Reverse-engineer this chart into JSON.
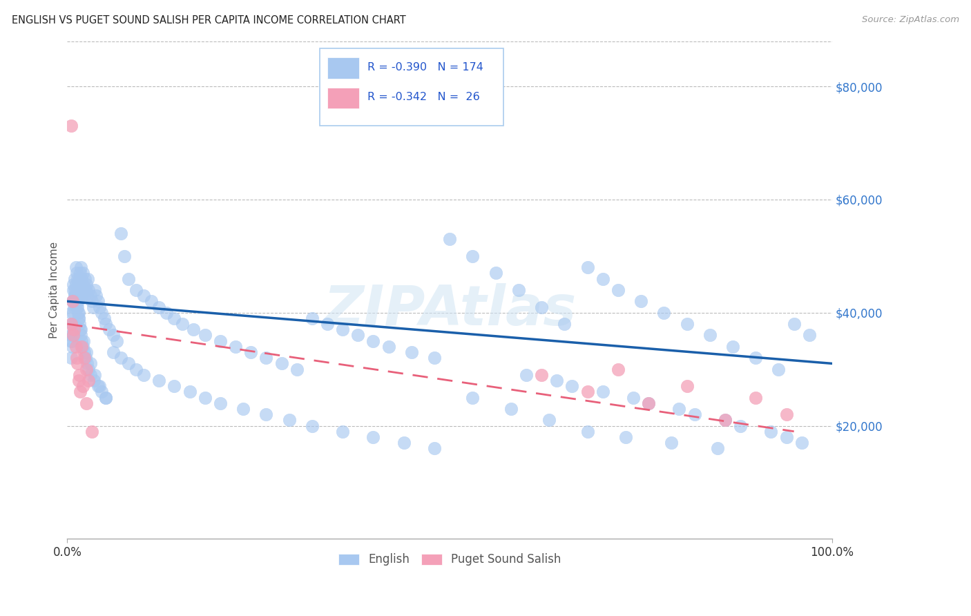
{
  "title": "ENGLISH VS PUGET SOUND SALISH PER CAPITA INCOME CORRELATION CHART",
  "source": "Source: ZipAtlas.com",
  "ylabel": "Per Capita Income",
  "watermark": "ZIPAtlas",
  "x_min": 0.0,
  "x_max": 1.0,
  "y_min": 0,
  "y_max": 88000,
  "y_ticks": [
    20000,
    40000,
    60000,
    80000
  ],
  "y_tick_labels": [
    "$20,000",
    "$40,000",
    "$60,000",
    "$80,000"
  ],
  "x_ticks": [
    0.0,
    1.0
  ],
  "x_tick_labels": [
    "0.0%",
    "100.0%"
  ],
  "blue_color": "#a8c8f0",
  "pink_color": "#f4a0b8",
  "blue_line_color": "#1a5faa",
  "pink_line_color": "#e8607a",
  "background_color": "#ffffff",
  "grid_color": "#bbbbbb",
  "title_color": "#222222",
  "axis_label_color": "#555555",
  "ytick_color": "#3377cc",
  "xtick_color": "#333333",
  "legend_R_color": "#2255cc",
  "eng_line_x0": 0.0,
  "eng_line_x1": 1.0,
  "eng_line_y0": 42000,
  "eng_line_y1": 31000,
  "sal_line_x0": 0.0,
  "sal_line_x1": 0.95,
  "sal_line_y0": 38000,
  "sal_line_y1": 19000,
  "english_x": [
    0.004,
    0.005,
    0.005,
    0.006,
    0.006,
    0.007,
    0.007,
    0.008,
    0.008,
    0.009,
    0.009,
    0.01,
    0.01,
    0.011,
    0.011,
    0.012,
    0.012,
    0.013,
    0.013,
    0.014,
    0.014,
    0.015,
    0.015,
    0.016,
    0.016,
    0.017,
    0.017,
    0.018,
    0.018,
    0.019,
    0.019,
    0.02,
    0.02,
    0.021,
    0.022,
    0.023,
    0.024,
    0.025,
    0.026,
    0.027,
    0.028,
    0.03,
    0.032,
    0.034,
    0.036,
    0.038,
    0.04,
    0.042,
    0.045,
    0.048,
    0.05,
    0.055,
    0.06,
    0.065,
    0.07,
    0.075,
    0.08,
    0.09,
    0.1,
    0.11,
    0.12,
    0.13,
    0.14,
    0.15,
    0.165,
    0.18,
    0.2,
    0.22,
    0.24,
    0.26,
    0.28,
    0.3,
    0.32,
    0.34,
    0.36,
    0.38,
    0.4,
    0.42,
    0.45,
    0.48,
    0.5,
    0.53,
    0.56,
    0.59,
    0.62,
    0.65,
    0.68,
    0.7,
    0.72,
    0.75,
    0.78,
    0.81,
    0.84,
    0.87,
    0.9,
    0.93,
    0.95,
    0.97,
    0.005,
    0.006,
    0.007,
    0.008,
    0.009,
    0.01,
    0.011,
    0.012,
    0.013,
    0.014,
    0.015,
    0.016,
    0.017,
    0.018,
    0.019,
    0.02,
    0.022,
    0.024,
    0.026,
    0.028,
    0.03,
    0.035,
    0.04,
    0.045,
    0.05,
    0.06,
    0.07,
    0.08,
    0.09,
    0.1,
    0.12,
    0.14,
    0.16,
    0.18,
    0.2,
    0.23,
    0.26,
    0.29,
    0.32,
    0.36,
    0.4,
    0.44,
    0.48,
    0.53,
    0.58,
    0.63,
    0.68,
    0.73,
    0.79,
    0.85,
    0.6,
    0.64,
    0.66,
    0.7,
    0.74,
    0.76,
    0.8,
    0.82,
    0.86,
    0.88,
    0.92,
    0.94,
    0.96,
    0.008,
    0.01,
    0.012,
    0.015,
    0.018,
    0.021,
    0.025,
    0.03,
    0.036,
    0.042,
    0.05
  ],
  "english_y": [
    36000,
    32000,
    40000,
    35000,
    38000,
    34000,
    42000,
    36000,
    44000,
    38000,
    41000,
    43000,
    46000,
    45000,
    48000,
    47000,
    44000,
    46000,
    43000,
    45000,
    42000,
    44000,
    40000,
    46000,
    43000,
    47000,
    45000,
    48000,
    44000,
    46000,
    43000,
    45000,
    47000,
    44000,
    43000,
    46000,
    44000,
    45000,
    43000,
    46000,
    44000,
    43000,
    42000,
    41000,
    44000,
    43000,
    42000,
    41000,
    40000,
    39000,
    38000,
    37000,
    36000,
    35000,
    54000,
    50000,
    46000,
    44000,
    43000,
    42000,
    41000,
    40000,
    39000,
    38000,
    37000,
    36000,
    35000,
    34000,
    33000,
    32000,
    31000,
    30000,
    39000,
    38000,
    37000,
    36000,
    35000,
    34000,
    33000,
    32000,
    53000,
    50000,
    47000,
    44000,
    41000,
    38000,
    48000,
    46000,
    44000,
    42000,
    40000,
    38000,
    36000,
    34000,
    32000,
    30000,
    38000,
    36000,
    35000,
    36000,
    38000,
    40000,
    42000,
    44000,
    43000,
    42000,
    41000,
    40000,
    39000,
    38000,
    37000,
    36000,
    35000,
    34000,
    33000,
    32000,
    31000,
    30000,
    29000,
    28000,
    27000,
    26000,
    25000,
    33000,
    32000,
    31000,
    30000,
    29000,
    28000,
    27000,
    26000,
    25000,
    24000,
    23000,
    22000,
    21000,
    20000,
    19000,
    18000,
    17000,
    16000,
    25000,
    23000,
    21000,
    19000,
    18000,
    17000,
    16000,
    29000,
    28000,
    27000,
    26000,
    25000,
    24000,
    23000,
    22000,
    21000,
    20000,
    19000,
    18000,
    17000,
    45000,
    43000,
    41000,
    39000,
    37000,
    35000,
    33000,
    31000,
    29000,
    27000,
    25000
  ],
  "salish_x": [
    0.005,
    0.007,
    0.009,
    0.011,
    0.013,
    0.015,
    0.017,
    0.019,
    0.022,
    0.025,
    0.028,
    0.032,
    0.005,
    0.008,
    0.012,
    0.016,
    0.02,
    0.025,
    0.62,
    0.68,
    0.72,
    0.76,
    0.81,
    0.86,
    0.9,
    0.94
  ],
  "salish_y": [
    73000,
    42000,
    37000,
    34000,
    31000,
    28000,
    26000,
    34000,
    32000,
    30000,
    28000,
    19000,
    38000,
    36000,
    32000,
    29000,
    27000,
    24000,
    29000,
    26000,
    30000,
    24000,
    27000,
    21000,
    25000,
    22000
  ]
}
